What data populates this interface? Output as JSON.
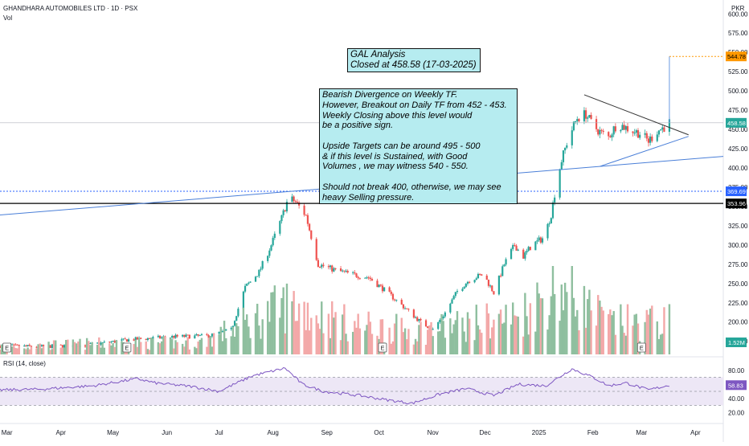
{
  "header": {
    "symbol_line": "GHANDHARA AUTOMOBILES LTD · 1D · PSX",
    "vol_label": "Vol",
    "currency": "PKR",
    "rsi_label": "RSI (14, close)"
  },
  "notes": {
    "box1": "GAL Analysis\nClosed at 458.58 (17-03-2025)",
    "box2": "Bearish Divergence on Weekly TF.\nHowever, Breakout on Daily TF from 452 - 453.\nWeekly Closing above this level would\nbe a positive sign.\n\nUpside Targets can be around 495 - 500\n& if this level is Sustained, with Good\nVolumes , we may witness 540 - 550.\n\nShould not break 400, otherwise, we may see\nheavy Selling pressure."
  },
  "colors": {
    "up": "#26a69a",
    "down": "#ef5350",
    "vol_up": "#8fbf9f",
    "vol_down": "#f3a8a8",
    "rsi_line": "#7e57c2",
    "rsi_band": "#ede7f6",
    "trendline": "#4a7fd8",
    "level_dotted": "#2962ff",
    "target": "#ff9800"
  },
  "chart_data": {
    "type": "candlestick",
    "title": "GHANDHARA AUTOMOBILES LTD · 1D · PSX",
    "y_axis": {
      "unit": "PKR",
      "ticks": [
        "600.00",
        "575.00",
        "550.00",
        "525.00",
        "500.00",
        "475.00",
        "450.00",
        "425.00",
        "400.00",
        "375.00",
        "350.00",
        "325.00",
        "300.00",
        "275.00",
        "250.00",
        "225.00",
        "200.00",
        "175.00"
      ],
      "range": [
        158,
        618
      ]
    },
    "x_axis": {
      "ticks": [
        "Mar",
        "Apr",
        "May",
        "Jun",
        "Jul",
        "Aug",
        "Sep",
        "Oct",
        "Nov",
        "Dec",
        "2025",
        "Feb",
        "Mar",
        "Apr"
      ],
      "range": [
        "2024-02-26",
        "2025-04-17"
      ]
    },
    "price_labels": {
      "target": "544.78",
      "last": "458.58",
      "level_dotted": "369.69",
      "level_solid": "353.96",
      "volume": "1.52M"
    },
    "levels": {
      "target": 544.78,
      "last": 458.58,
      "dotted": 369.69,
      "solid": 353.96
    },
    "price_anchors": [
      [
        "2024-02-26",
        169
      ],
      [
        "2024-03-20",
        168
      ],
      [
        "2024-04-15",
        170
      ],
      [
        "2024-05-10",
        177
      ],
      [
        "2024-06-05",
        181
      ],
      [
        "2024-06-25",
        182
      ],
      [
        "2024-07-08",
        190
      ],
      [
        "2024-07-16",
        245
      ],
      [
        "2024-07-24",
        265
      ],
      [
        "2024-07-31",
        300
      ],
      [
        "2024-08-06",
        335
      ],
      [
        "2024-08-10",
        362
      ],
      [
        "2024-08-14",
        356
      ],
      [
        "2024-08-20",
        338
      ],
      [
        "2024-08-27",
        275
      ],
      [
        "2024-09-05",
        268
      ],
      [
        "2024-09-15",
        262
      ],
      [
        "2024-09-25",
        258
      ],
      [
        "2024-10-05",
        240
      ],
      [
        "2024-10-15",
        220
      ],
      [
        "2024-10-25",
        200
      ],
      [
        "2024-11-01",
        190
      ],
      [
        "2024-11-08",
        212
      ],
      [
        "2024-11-15",
        240
      ],
      [
        "2024-11-22",
        255
      ],
      [
        "2024-11-30",
        262
      ],
      [
        "2024-12-06",
        238
      ],
      [
        "2024-12-12",
        275
      ],
      [
        "2024-12-18",
        300
      ],
      [
        "2024-12-23",
        285
      ],
      [
        "2024-12-28",
        300
      ],
      [
        "2025-01-04",
        310
      ],
      [
        "2025-01-08",
        340
      ],
      [
        "2025-01-11",
        380
      ],
      [
        "2025-01-14",
        410
      ],
      [
        "2025-01-18",
        440
      ],
      [
        "2025-01-23",
        465
      ],
      [
        "2025-01-28",
        470
      ],
      [
        "2025-02-01",
        455
      ],
      [
        "2025-02-06",
        445
      ],
      [
        "2025-02-10",
        440
      ],
      [
        "2025-02-15",
        458
      ],
      [
        "2025-02-22",
        450
      ],
      [
        "2025-02-28",
        445
      ],
      [
        "2025-03-05",
        435
      ],
      [
        "2025-03-10",
        448
      ],
      [
        "2025-03-14",
        453
      ],
      [
        "2025-03-17",
        458.58
      ]
    ],
    "volume_anchors": [
      [
        "2024-02-26",
        0.35
      ],
      [
        "2024-04-15",
        0.5
      ],
      [
        "2024-06-20",
        0.55
      ],
      [
        "2024-07-20",
        1.6
      ],
      [
        "2024-08-10",
        2.4
      ],
      [
        "2024-09-15",
        1.4
      ],
      [
        "2024-10-25",
        1.1
      ],
      [
        "2024-11-25",
        1.5
      ],
      [
        "2024-12-20",
        1.8
      ],
      [
        "2025-01-12",
        3.2
      ],
      [
        "2025-02-10",
        1.5
      ],
      [
        "2025-03-17",
        1.52
      ]
    ],
    "rsi": {
      "ticks": [
        "80.00",
        "60.00",
        "40.00",
        "20.00"
      ],
      "band": [
        70,
        30
      ],
      "last_label": "58.83",
      "last": 58.83,
      "anchors": [
        [
          "2024-02-26",
          52
        ],
        [
          "2024-03-20",
          53
        ],
        [
          "2024-04-20",
          58
        ],
        [
          "2024-05-15",
          68
        ],
        [
          "2024-05-25",
          62
        ],
        [
          "2024-06-15",
          57
        ],
        [
          "2024-07-01",
          50
        ],
        [
          "2024-07-20",
          72
        ],
        [
          "2024-08-08",
          83
        ],
        [
          "2024-08-18",
          60
        ],
        [
          "2024-08-30",
          50
        ],
        [
          "2024-09-20",
          44
        ],
        [
          "2024-10-05",
          38
        ],
        [
          "2024-10-20",
          33
        ],
        [
          "2024-11-05",
          46
        ],
        [
          "2024-11-20",
          54
        ],
        [
          "2024-12-06",
          44
        ],
        [
          "2024-12-20",
          60
        ],
        [
          "2025-01-05",
          58
        ],
        [
          "2025-01-20",
          82
        ],
        [
          "2025-02-01",
          70
        ],
        [
          "2025-02-10",
          58
        ],
        [
          "2025-02-20",
          62
        ],
        [
          "2025-03-05",
          52
        ],
        [
          "2025-03-17",
          58.83
        ]
      ]
    },
    "trendlines": [
      {
        "from": [
          "2024-02-26",
          339
        ],
        "to": [
          "2025-04-17",
          415
        ]
      },
      {
        "from": [
          "2025-01-27",
          495
        ],
        "to": [
          "2025-03-28",
          443
        ]
      },
      {
        "from": [
          "2025-02-05",
          402
        ],
        "to": [
          "2025-03-28",
          441
        ]
      }
    ],
    "earnings_markers": [
      "2024-03-01",
      "2024-05-09",
      "2024-10-03",
      "2025-03-01"
    ]
  }
}
